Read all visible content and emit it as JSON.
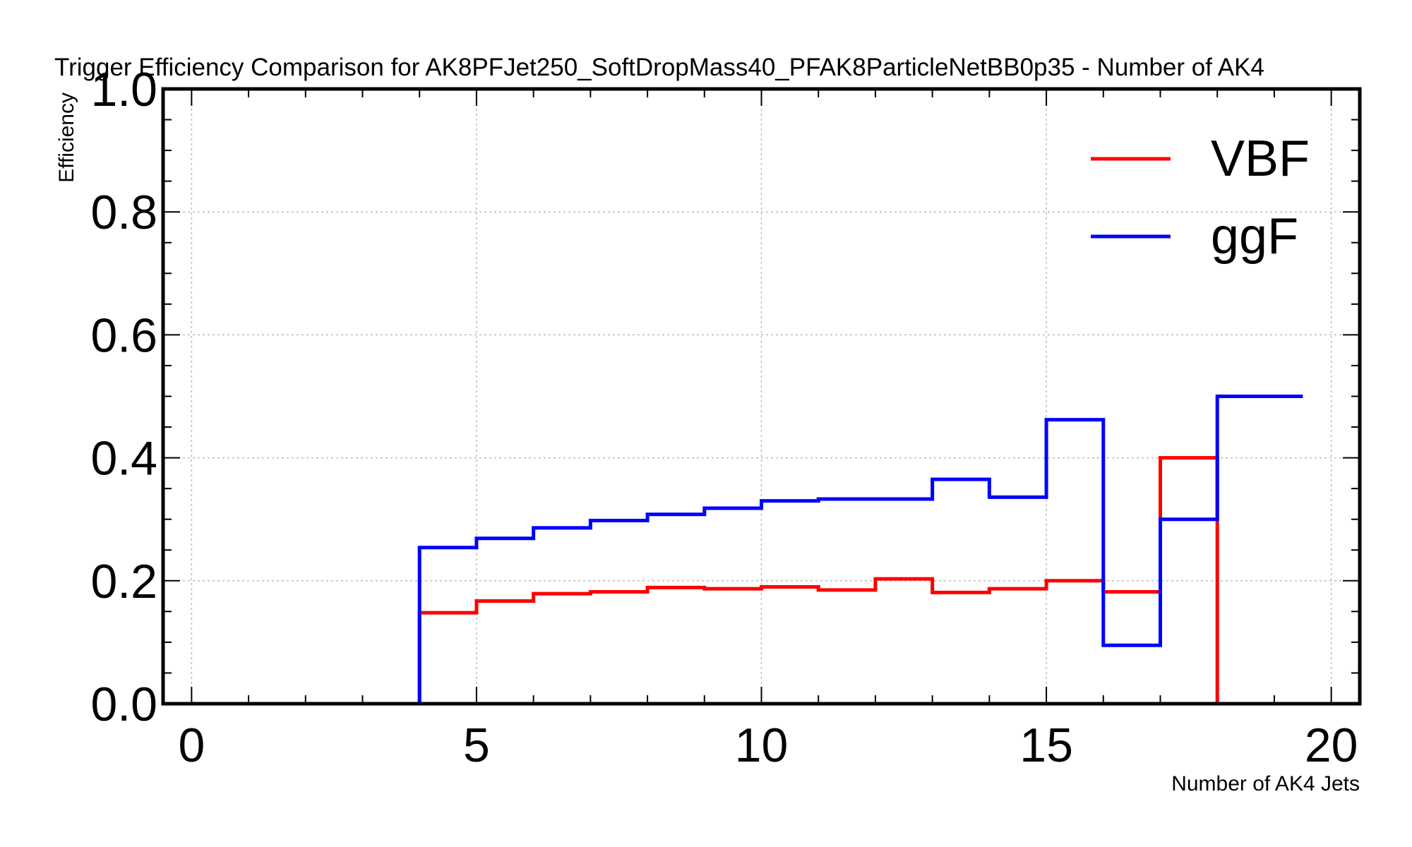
{
  "chart_data": {
    "type": "line",
    "step": true,
    "title": "Trigger Efficiency Comparison for AK8PFJet250_SoftDropMass40_PFAK8ParticleNetBB0p35 - Number of AK4",
    "xlabel": "Number of AK4 Jets",
    "ylabel": "Efficiency",
    "xlim": [
      -0.5,
      20.5
    ],
    "ylim": [
      0,
      1
    ],
    "xticks": [
      0,
      5,
      10,
      15,
      20
    ],
    "xtick_labels": [
      "0",
      "5",
      "10",
      "15",
      "20"
    ],
    "yticks": [
      0,
      0.2,
      0.4,
      0.6,
      0.8,
      1
    ],
    "ytick_labels": [
      "0.0",
      "0.2",
      "0.4",
      "0.6",
      "0.8",
      "1.0"
    ],
    "grid": true,
    "legend_position": "top-right",
    "bin_edges": [
      -0.5,
      0,
      1,
      2,
      3,
      4,
      5,
      6,
      7,
      8,
      9,
      10,
      11,
      12,
      13,
      14,
      15,
      16,
      17,
      18,
      19.5
    ],
    "series": [
      {
        "name": "VBF",
        "color": "#ff0000",
        "values": [
          0,
          0,
          0,
          0,
          0,
          0.148,
          0.167,
          0.179,
          0.182,
          0.189,
          0.187,
          0.19,
          0.185,
          0.203,
          0.181,
          0.187,
          0.2,
          0.182,
          0.4,
          0
        ]
      },
      {
        "name": "ggF",
        "color": "#0000ff",
        "values": [
          0,
          0,
          0,
          0,
          0,
          0.254,
          0.269,
          0.286,
          0.298,
          0.308,
          0.318,
          0.33,
          0.333,
          0.333,
          0.365,
          0.336,
          0.462,
          0.095,
          0.3,
          0.5
        ]
      }
    ]
  }
}
